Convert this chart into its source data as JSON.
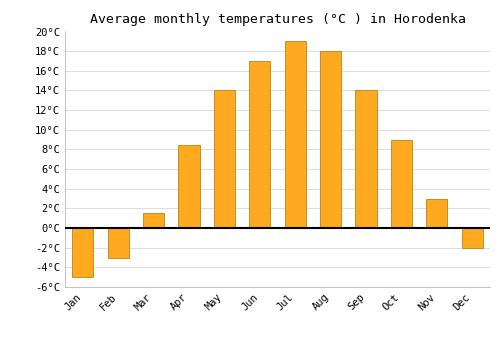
{
  "title": "Average monthly temperatures (°C ) in Horodenka",
  "months": [
    "Jan",
    "Feb",
    "Mar",
    "Apr",
    "May",
    "Jun",
    "Jul",
    "Aug",
    "Sep",
    "Oct",
    "Nov",
    "Dec"
  ],
  "values": [
    -5.0,
    -3.0,
    1.5,
    8.5,
    14.0,
    17.0,
    19.0,
    18.0,
    14.0,
    9.0,
    3.0,
    -2.0
  ],
  "bar_color": "#FFA920",
  "bar_edge_color": "#B8860B",
  "ylim": [
    -6,
    20
  ],
  "yticks": [
    -6,
    -4,
    -2,
    0,
    2,
    4,
    6,
    8,
    10,
    12,
    14,
    16,
    18,
    20
  ],
  "plot_bg_color": "#ffffff",
  "fig_bg_color": "#ffffff",
  "grid_color": "#dddddd",
  "title_fontsize": 9.5,
  "tick_fontsize": 7.5,
  "font_family": "monospace"
}
